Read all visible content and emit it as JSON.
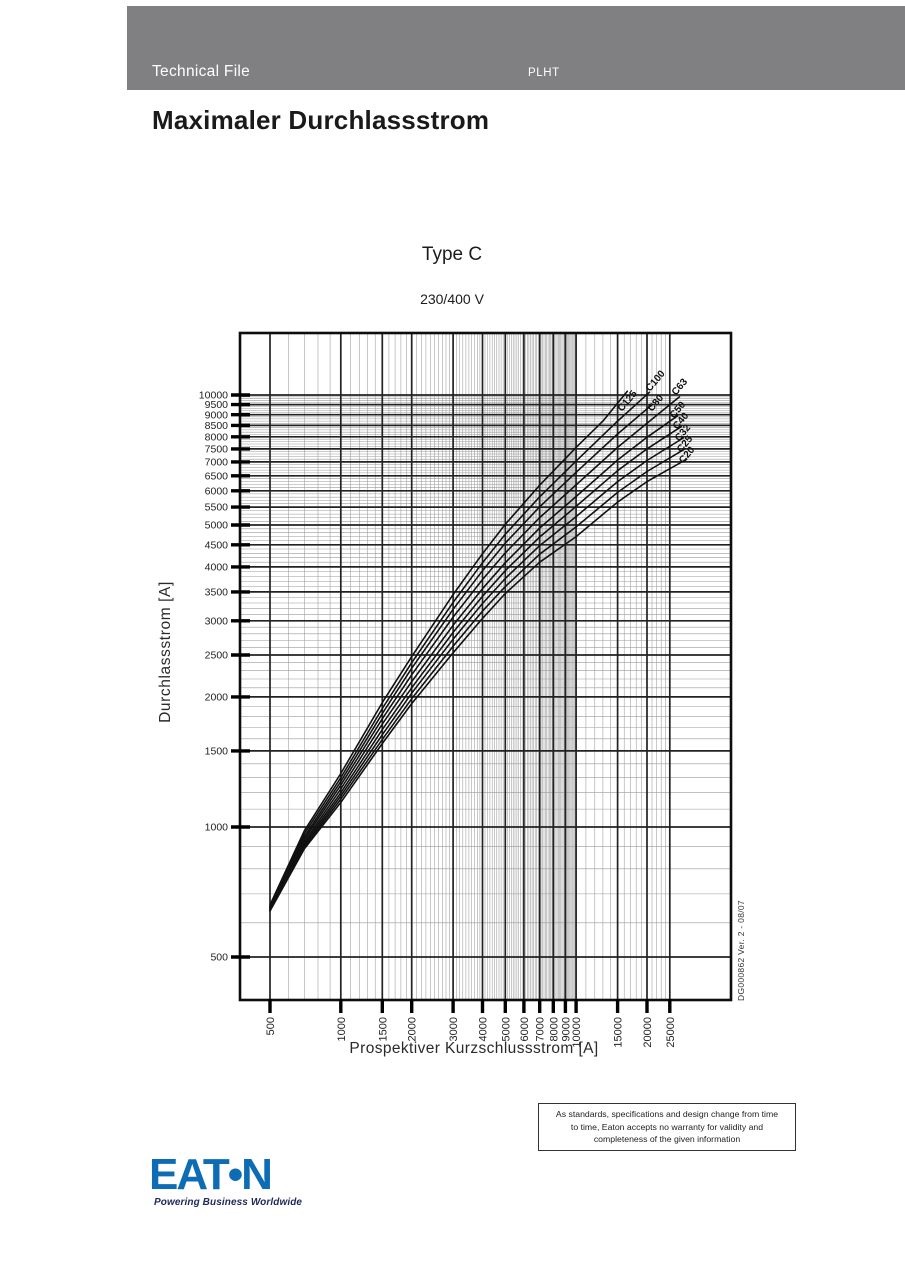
{
  "colors": {
    "header_bar": "#808083",
    "logo_blue": "#0d6cb3",
    "tagline": "#232a5c",
    "grid_minor": "#9a9a9a",
    "grid_major": "#222222",
    "frame": "#0d0d0d",
    "curve": "#111111"
  },
  "header": {
    "left_label": "Technical File",
    "right_label": "PLHT"
  },
  "title": "Maximaler Durchlassstrom",
  "chart": {
    "title": "Type C",
    "subtitle": "230/400 V",
    "x_axis_label": "Prospektiver Kurzschlussstrom [A]",
    "y_axis_label": "Durchlassstrom  [A]",
    "doc_ref": "DG000862  Ver. 2 - 08/07"
  },
  "chart_data": {
    "type": "line",
    "title": "Type C",
    "subtitle": "230/400 V",
    "xlabel": "Prospektiver Kurzschlussstrom [A]",
    "ylabel": "Durchlassstrom [A]",
    "x_scale": "log",
    "y_scale": "log",
    "x_range": [
      373,
      45500
    ],
    "y_range": [
      397,
      13900
    ],
    "x_ticks": [
      500,
      1000,
      1500,
      2000,
      3000,
      4000,
      5000,
      6000,
      7000,
      8000,
      9000,
      10000,
      15000,
      20000,
      25000
    ],
    "y_ticks": [
      500,
      1000,
      1500,
      2000,
      2500,
      3000,
      3500,
      4000,
      4500,
      5000,
      5500,
      6000,
      6500,
      7000,
      7500,
      8000,
      8500,
      9000,
      9500,
      10000
    ],
    "grid": "log-minor-every-100",
    "legend_position": "curve-end-labels",
    "series": [
      {
        "name": "C125",
        "label_at": [
          15660,
          9130
        ],
        "points": [
          [
            500,
            660
          ],
          [
            700,
            980
          ],
          [
            1000,
            1330
          ],
          [
            1500,
            1940
          ],
          [
            2000,
            2480
          ],
          [
            3000,
            3450
          ],
          [
            4000,
            4290
          ],
          [
            5000,
            5020
          ],
          [
            7000,
            6180
          ],
          [
            10000,
            7560
          ],
          [
            13000,
            8700
          ],
          [
            16500,
            10200
          ]
        ]
      },
      {
        "name": "C100",
        "label_at": [
          20600,
          10160
        ],
        "points": [
          [
            500,
            656
          ],
          [
            700,
            965
          ],
          [
            1000,
            1300
          ],
          [
            1500,
            1880
          ],
          [
            2000,
            2400
          ],
          [
            3000,
            3310
          ],
          [
            4000,
            4090
          ],
          [
            5000,
            4760
          ],
          [
            7000,
            5810
          ],
          [
            10000,
            7030
          ],
          [
            15000,
            8700
          ],
          [
            20500,
            10150
          ]
        ]
      },
      {
        "name": "C80",
        "label_at": [
          21000,
          9130
        ],
        "points": [
          [
            500,
            652
          ],
          [
            700,
            950
          ],
          [
            1000,
            1275
          ],
          [
            1500,
            1830
          ],
          [
            2000,
            2330
          ],
          [
            3000,
            3190
          ],
          [
            4000,
            3920
          ],
          [
            5000,
            4540
          ],
          [
            7000,
            5510
          ],
          [
            10000,
            6620
          ],
          [
            15000,
            8120
          ],
          [
            21000,
            9500
          ]
        ]
      },
      {
        "name": "C63",
        "label_at": [
          26570,
          9950
        ],
        "points": [
          [
            500,
            650
          ],
          [
            700,
            938
          ],
          [
            1000,
            1250
          ],
          [
            1500,
            1780
          ],
          [
            2000,
            2250
          ],
          [
            3000,
            3060
          ],
          [
            4000,
            3740
          ],
          [
            5000,
            4310
          ],
          [
            7000,
            5200
          ],
          [
            10000,
            6190
          ],
          [
            15000,
            7560
          ],
          [
            20000,
            8600
          ],
          [
            27500,
            9900
          ]
        ]
      },
      {
        "name": "C50",
        "label_at": [
          26050,
          8800
        ],
        "points": [
          [
            500,
            647
          ],
          [
            700,
            925
          ],
          [
            1000,
            1225
          ],
          [
            1500,
            1730
          ],
          [
            2000,
            2170
          ],
          [
            3000,
            2930
          ],
          [
            4000,
            3560
          ],
          [
            5000,
            4090
          ],
          [
            7000,
            4920
          ],
          [
            10000,
            5820
          ],
          [
            15000,
            7070
          ],
          [
            20000,
            7980
          ],
          [
            27000,
            8950
          ]
        ]
      },
      {
        "name": "C40",
        "label_at": [
          26850,
          8300
        ],
        "points": [
          [
            500,
            645
          ],
          [
            700,
            915
          ],
          [
            1000,
            1200
          ],
          [
            1500,
            1680
          ],
          [
            2000,
            2100
          ],
          [
            3000,
            2820
          ],
          [
            4000,
            3420
          ],
          [
            5000,
            3920
          ],
          [
            7000,
            4690
          ],
          [
            10000,
            5520
          ],
          [
            15000,
            6680
          ],
          [
            20000,
            7500
          ],
          [
            28000,
            8450
          ]
        ]
      },
      {
        "name": "C32",
        "label_at": [
          27400,
          7790
        ],
        "points": [
          [
            500,
            643
          ],
          [
            700,
            905
          ],
          [
            1000,
            1180
          ],
          [
            1500,
            1635
          ],
          [
            2000,
            2040
          ],
          [
            3000,
            2720
          ],
          [
            4000,
            3290
          ],
          [
            5000,
            3760
          ],
          [
            7000,
            4480
          ],
          [
            10000,
            5230
          ],
          [
            15000,
            6300
          ],
          [
            20000,
            7050
          ],
          [
            28500,
            7950
          ]
        ]
      },
      {
        "name": "C25",
        "label_at": [
          27950,
          7340
        ],
        "points": [
          [
            500,
            641
          ],
          [
            700,
            897
          ],
          [
            1000,
            1160
          ],
          [
            1500,
            1595
          ],
          [
            2000,
            1980
          ],
          [
            3000,
            2620
          ],
          [
            4000,
            3160
          ],
          [
            5000,
            3600
          ],
          [
            7000,
            4280
          ],
          [
            10000,
            4950
          ],
          [
            15000,
            5950
          ],
          [
            20000,
            6650
          ],
          [
            29000,
            7500
          ]
        ]
      },
      {
        "name": "C20",
        "label_at": [
          28500,
          6920
        ],
        "points": [
          [
            500,
            639
          ],
          [
            700,
            890
          ],
          [
            1000,
            1140
          ],
          [
            1500,
            1560
          ],
          [
            2000,
            1930
          ],
          [
            3000,
            2530
          ],
          [
            4000,
            3040
          ],
          [
            5000,
            3470
          ],
          [
            7000,
            4100
          ],
          [
            10000,
            4700
          ],
          [
            15000,
            5650
          ],
          [
            20000,
            6300
          ],
          [
            29500,
            7100
          ]
        ]
      }
    ]
  },
  "disclaimer": {
    "text": "As standards, specifications and design change from time to time, Eaton accepts no warranty for validity and completeness of the given information"
  },
  "logo": {
    "word": "EAT•N",
    "tagline": "Powering Business Worldwide"
  }
}
